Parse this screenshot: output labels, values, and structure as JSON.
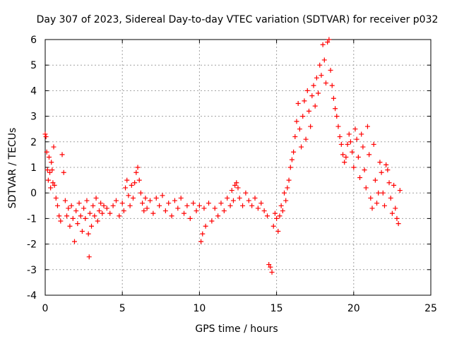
{
  "chart_data": {
    "type": "scatter",
    "title": "Day 307 of 2023, Sidereal Day-to-day VTEC variation (SDTVAR) for receiver p032",
    "xlabel": "GPS time / hours",
    "ylabel": "SDTVAR / TECUs",
    "xlim": [
      0,
      25
    ],
    "ylim": [
      -4,
      6
    ],
    "xticks": [
      0,
      5,
      10,
      15,
      20,
      25
    ],
    "yticks": [
      -4,
      -3,
      -2,
      -1,
      0,
      1,
      2,
      3,
      4,
      5,
      6
    ],
    "grid": true,
    "marker": "+",
    "color": "#ff0000",
    "series": [
      {
        "name": "SDTVAR",
        "points": [
          [
            0.0,
            2.3
          ],
          [
            0.05,
            2.2
          ],
          [
            0.1,
            1.6
          ],
          [
            0.15,
            0.9
          ],
          [
            0.2,
            0.5
          ],
          [
            0.25,
            1.4
          ],
          [
            0.3,
            0.8
          ],
          [
            0.35,
            0.2
          ],
          [
            0.4,
            1.2
          ],
          [
            0.45,
            0.9
          ],
          [
            0.5,
            0.4
          ],
          [
            0.55,
            1.8
          ],
          [
            0.6,
            0.3
          ],
          [
            0.7,
            -0.2
          ],
          [
            0.8,
            -0.5
          ],
          [
            0.9,
            -0.9
          ],
          [
            1.0,
            -1.1
          ],
          [
            1.1,
            1.5
          ],
          [
            1.2,
            0.8
          ],
          [
            1.3,
            -0.3
          ],
          [
            1.4,
            -0.9
          ],
          [
            1.5,
            -0.6
          ],
          [
            1.6,
            -1.3
          ],
          [
            1.7,
            -0.5
          ],
          [
            1.8,
            -1.0
          ],
          [
            1.9,
            -1.9
          ],
          [
            2.0,
            -0.7
          ],
          [
            2.1,
            -1.2
          ],
          [
            2.2,
            -0.4
          ],
          [
            2.3,
            -0.9
          ],
          [
            2.4,
            -1.5
          ],
          [
            2.5,
            -0.6
          ],
          [
            2.6,
            -1.0
          ],
          [
            2.7,
            -0.3
          ],
          [
            2.8,
            -1.6
          ],
          [
            2.85,
            -2.5
          ],
          [
            2.9,
            -0.8
          ],
          [
            3.0,
            -1.3
          ],
          [
            3.1,
            -0.5
          ],
          [
            3.2,
            -0.9
          ],
          [
            3.3,
            -0.2
          ],
          [
            3.4,
            -1.1
          ],
          [
            3.5,
            -0.7
          ],
          [
            3.6,
            -0.4
          ],
          [
            3.7,
            -0.8
          ],
          [
            3.8,
            -0.5
          ],
          [
            4.0,
            -0.6
          ],
          [
            4.2,
            -0.8
          ],
          [
            4.4,
            -0.5
          ],
          [
            4.6,
            -0.3
          ],
          [
            4.8,
            -0.9
          ],
          [
            5.0,
            -0.4
          ],
          [
            5.1,
            -0.7
          ],
          [
            5.2,
            0.2
          ],
          [
            5.3,
            0.5
          ],
          [
            5.4,
            -0.1
          ],
          [
            5.5,
            -0.5
          ],
          [
            5.6,
            0.3
          ],
          [
            5.7,
            -0.2
          ],
          [
            5.8,
            0.4
          ],
          [
            5.9,
            0.8
          ],
          [
            6.0,
            1.0
          ],
          [
            6.1,
            0.5
          ],
          [
            6.2,
            0.0
          ],
          [
            6.3,
            -0.4
          ],
          [
            6.4,
            -0.7
          ],
          [
            6.5,
            -0.2
          ],
          [
            6.6,
            -0.6
          ],
          [
            6.8,
            -0.3
          ],
          [
            7.0,
            -0.8
          ],
          [
            7.2,
            -0.2
          ],
          [
            7.4,
            -0.5
          ],
          [
            7.6,
            -0.1
          ],
          [
            7.8,
            -0.7
          ],
          [
            8.0,
            -0.4
          ],
          [
            8.2,
            -0.9
          ],
          [
            8.4,
            -0.3
          ],
          [
            8.6,
            -0.6
          ],
          [
            8.8,
            -0.2
          ],
          [
            9.0,
            -0.8
          ],
          [
            9.2,
            -0.5
          ],
          [
            9.4,
            -1.0
          ],
          [
            9.6,
            -0.4
          ],
          [
            9.8,
            -0.7
          ],
          [
            10.0,
            -0.5
          ],
          [
            10.1,
            -1.9
          ],
          [
            10.2,
            -1.6
          ],
          [
            10.3,
            -0.6
          ],
          [
            10.4,
            -1.3
          ],
          [
            10.6,
            -0.4
          ],
          [
            10.8,
            -1.1
          ],
          [
            11.0,
            -0.6
          ],
          [
            11.2,
            -0.9
          ],
          [
            11.4,
            -0.4
          ],
          [
            11.6,
            -0.7
          ],
          [
            11.8,
            -0.2
          ],
          [
            12.0,
            -0.5
          ],
          [
            12.1,
            0.1
          ],
          [
            12.2,
            -0.3
          ],
          [
            12.3,
            0.3
          ],
          [
            12.4,
            0.4
          ],
          [
            12.5,
            0.2
          ],
          [
            12.6,
            -0.2
          ],
          [
            12.8,
            -0.5
          ],
          [
            13.0,
            0.0
          ],
          [
            13.2,
            -0.3
          ],
          [
            13.4,
            -0.5
          ],
          [
            13.6,
            -0.2
          ],
          [
            13.8,
            -0.6
          ],
          [
            14.0,
            -0.4
          ],
          [
            14.2,
            -0.7
          ],
          [
            14.4,
            -0.9
          ],
          [
            14.5,
            -2.8
          ],
          [
            14.6,
            -2.9
          ],
          [
            14.7,
            -3.1
          ],
          [
            14.8,
            -1.3
          ],
          [
            14.9,
            -0.8
          ],
          [
            15.0,
            -1.0
          ],
          [
            15.1,
            -1.5
          ],
          [
            15.2,
            -0.9
          ],
          [
            15.3,
            -0.5
          ],
          [
            15.4,
            -0.7
          ],
          [
            15.5,
            0.0
          ],
          [
            15.6,
            -0.3
          ],
          [
            15.7,
            0.2
          ],
          [
            15.8,
            0.5
          ],
          [
            15.9,
            1.0
          ],
          [
            16.0,
            1.3
          ],
          [
            16.1,
            1.6
          ],
          [
            16.2,
            2.2
          ],
          [
            16.3,
            2.8
          ],
          [
            16.4,
            3.5
          ],
          [
            16.5,
            2.5
          ],
          [
            16.6,
            1.8
          ],
          [
            16.7,
            3.0
          ],
          [
            16.8,
            3.6
          ],
          [
            16.9,
            2.1
          ],
          [
            17.0,
            4.0
          ],
          [
            17.1,
            3.2
          ],
          [
            17.2,
            2.6
          ],
          [
            17.3,
            3.8
          ],
          [
            17.4,
            4.2
          ],
          [
            17.5,
            3.4
          ],
          [
            17.6,
            4.5
          ],
          [
            17.7,
            3.9
          ],
          [
            17.8,
            5.0
          ],
          [
            17.9,
            4.6
          ],
          [
            18.0,
            5.8
          ],
          [
            18.1,
            5.2
          ],
          [
            18.2,
            4.3
          ],
          [
            18.3,
            5.9
          ],
          [
            18.4,
            6.0
          ],
          [
            18.5,
            4.8
          ],
          [
            18.6,
            4.2
          ],
          [
            18.7,
            3.7
          ],
          [
            18.8,
            3.3
          ],
          [
            18.9,
            3.0
          ],
          [
            19.0,
            2.6
          ],
          [
            19.1,
            2.2
          ],
          [
            19.2,
            1.9
          ],
          [
            19.3,
            1.5
          ],
          [
            19.4,
            1.2
          ],
          [
            19.5,
            1.4
          ],
          [
            19.6,
            1.9
          ],
          [
            19.7,
            2.3
          ],
          [
            19.8,
            2.0
          ],
          [
            19.9,
            1.6
          ],
          [
            20.0,
            1.0
          ],
          [
            20.1,
            2.5
          ],
          [
            20.2,
            2.1
          ],
          [
            20.3,
            1.4
          ],
          [
            20.4,
            0.6
          ],
          [
            20.5,
            2.3
          ],
          [
            20.6,
            1.8
          ],
          [
            20.7,
            0.9
          ],
          [
            20.8,
            0.2
          ],
          [
            20.9,
            2.6
          ],
          [
            21.0,
            1.5
          ],
          [
            21.1,
            -0.2
          ],
          [
            21.2,
            -0.6
          ],
          [
            21.3,
            1.9
          ],
          [
            21.4,
            0.5
          ],
          [
            21.5,
            -0.4
          ],
          [
            21.6,
            0.0
          ],
          [
            21.7,
            1.2
          ],
          [
            21.8,
            0.8
          ],
          [
            21.9,
            0.0
          ],
          [
            22.0,
            -0.5
          ],
          [
            22.1,
            1.1
          ],
          [
            22.2,
            0.9
          ],
          [
            22.3,
            0.4
          ],
          [
            22.4,
            -0.2
          ],
          [
            22.5,
            -0.8
          ],
          [
            22.6,
            0.3
          ],
          [
            22.7,
            -0.6
          ],
          [
            22.8,
            -1.0
          ],
          [
            22.9,
            -1.2
          ],
          [
            23.0,
            0.1
          ]
        ]
      }
    ]
  }
}
